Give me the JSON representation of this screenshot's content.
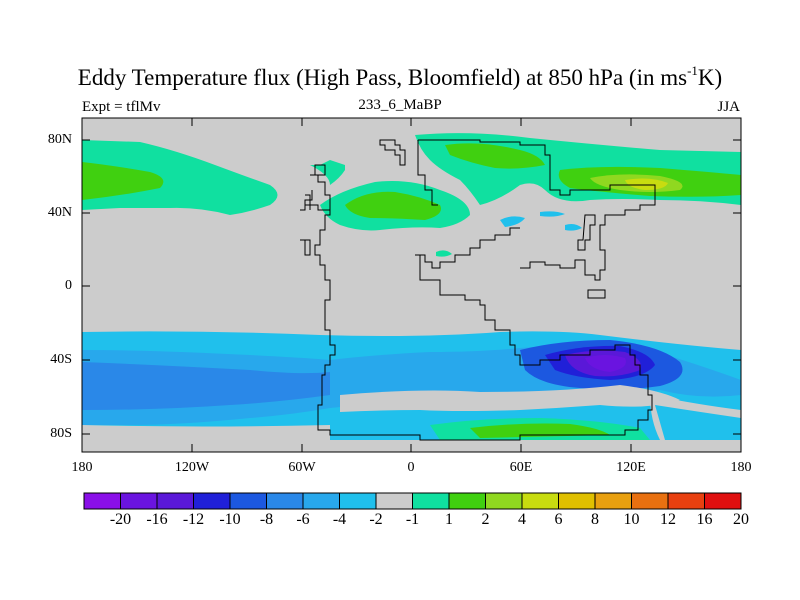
{
  "title_main": "Eddy Temperature flux (High Pass, Bloomfield) at 850 hPa (in ms",
  "title_sup": "-1",
  "title_end": "K)",
  "left_label": "Expt = tflMv",
  "center_label": "233_6_MaBP",
  "right_label": "JJA",
  "y_ticks": [
    "80N",
    "40N",
    "0",
    "40S",
    "80S"
  ],
  "x_ticks": [
    "180",
    "120W",
    "60W",
    "0",
    "60E",
    "120E",
    "180"
  ],
  "colorbar": {
    "colors": [
      "#8a10e8",
      "#6a14e0",
      "#5a18d8",
      "#2020d8",
      "#1c58e0",
      "#2a88e8",
      "#28a8ec",
      "#20c0ec",
      "#cccccc",
      "#10e0a0",
      "#40d010",
      "#90d820",
      "#c8dc10",
      "#e0c000",
      "#e8a010",
      "#e87010",
      "#e84010",
      "#e01010"
    ],
    "labels": [
      "-20",
      "-16",
      "-12",
      "-10",
      "-8",
      "-6",
      "-4",
      "-2",
      "-1",
      "1",
      "2",
      "4",
      "6",
      "8",
      "10",
      "12",
      "16",
      "20"
    ]
  },
  "background_color": "#cccccc"
}
